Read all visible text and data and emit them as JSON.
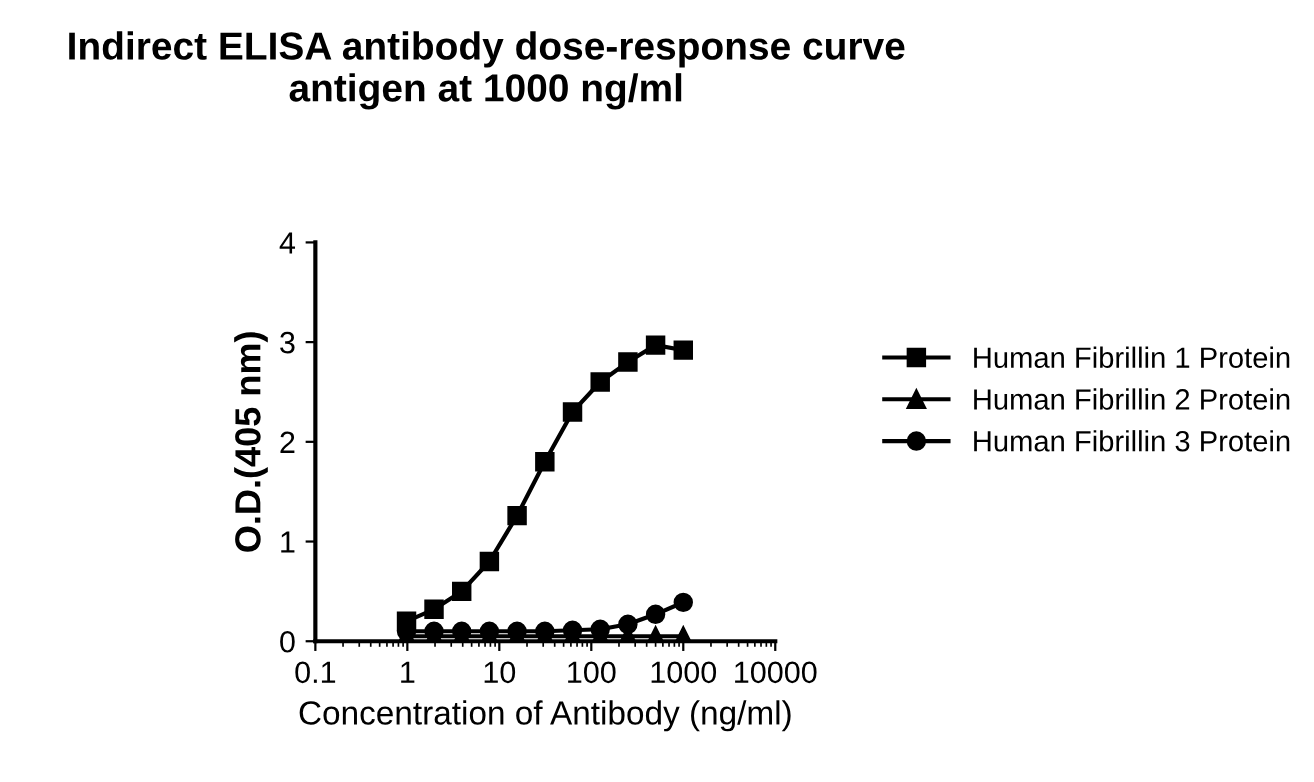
{
  "chart_data": {
    "type": "line",
    "title": "Indirect ELISA antibody dose-response curve\nantigen at 1000 ng/ml",
    "xlabel": "Concentration of Antibody (ng/ml)",
    "ylabel": "O.D.(405 nm)",
    "x": [
      0.98,
      1.95,
      3.9,
      7.8,
      15.6,
      31.25,
      62.5,
      125,
      250,
      500,
      1000
    ],
    "series": [
      {
        "name": "Human Fibrillin 1 Protein",
        "color": "#000000",
        "marker": "square",
        "values": [
          0.2,
          0.32,
          0.5,
          0.8,
          1.26,
          1.8,
          2.3,
          2.6,
          2.8,
          2.97,
          2.92
        ]
      },
      {
        "name": "Human Fibrillin 2 Protein",
        "color": "#000000",
        "marker": "triangle",
        "values": [
          0.05,
          0.05,
          0.05,
          0.05,
          0.05,
          0.05,
          0.05,
          0.05,
          0.05,
          0.05,
          0.05
        ]
      },
      {
        "name": "Human Fibrillin 3 Protein",
        "color": "#000000",
        "marker": "circle",
        "values": [
          0.1,
          0.1,
          0.1,
          0.1,
          0.1,
          0.1,
          0.11,
          0.12,
          0.17,
          0.27,
          0.39
        ]
      }
    ],
    "log": "x",
    "xlim": [
      0.1,
      10000
    ],
    "xticks": [
      0.1,
      1,
      10,
      100,
      1000,
      10000
    ],
    "ylim": [
      0,
      4
    ],
    "yticks": [
      0,
      1,
      2,
      3,
      4
    ],
    "grid": false,
    "legend": "right",
    "line_style": "solid"
  }
}
